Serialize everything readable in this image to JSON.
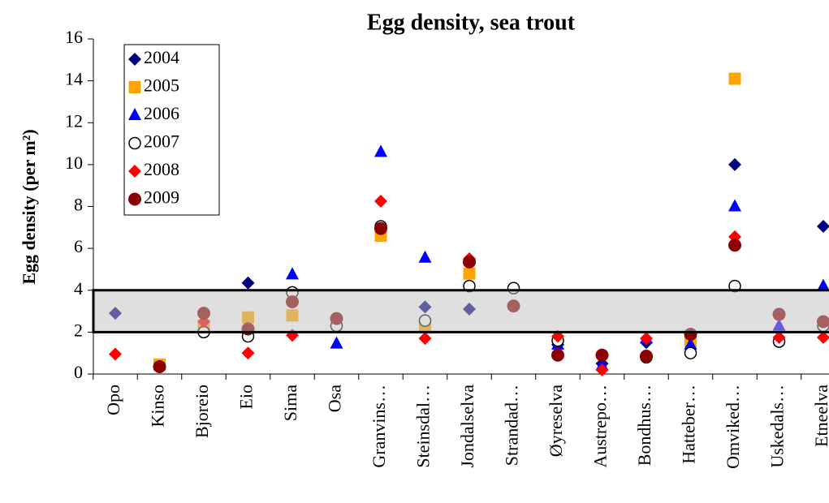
{
  "chart_data": {
    "type": "scatter",
    "title": "Egg density, sea trout",
    "y_label": "Egg density (per m²)",
    "categories": [
      "Opo",
      "Kinso",
      "Bjoreio",
      "Eio",
      "Sima",
      "Osa",
      "Granvins…",
      "Steinsdal…",
      "Jondalselva",
      "Strandad…",
      "Øyreselva",
      "Austrepo…",
      "Bondhus…",
      "Hatteber…",
      "Omviked…",
      "Uskedals…",
      "Etneelva"
    ],
    "series": [
      {
        "name": "2004",
        "color": "#000080",
        "marker": "diamond",
        "values": [
          2.9,
          null,
          null,
          4.35,
          null,
          null,
          7.0,
          3.2,
          3.1,
          null,
          1.4,
          0.5,
          1.5,
          null,
          10.0,
          null,
          7.05
        ]
      },
      {
        "name": "2005",
        "color": "#FFA500",
        "marker": "square",
        "values": [
          null,
          0.45,
          2.3,
          2.7,
          2.8,
          null,
          6.6,
          2.3,
          4.8,
          null,
          null,
          null,
          null,
          1.5,
          14.1,
          null,
          null
        ]
      },
      {
        "name": "2006",
        "color": "#0000FF",
        "marker": "triangle",
        "values": [
          null,
          null,
          null,
          null,
          4.75,
          1.45,
          10.6,
          5.55,
          null,
          null,
          1.4,
          0.4,
          1.7,
          1.4,
          8.0,
          2.3,
          4.2
        ]
      },
      {
        "name": "2007",
        "color": "#000000",
        "marker": "open-circle",
        "values": [
          null,
          null,
          2.0,
          1.8,
          3.9,
          2.3,
          7.05,
          2.55,
          4.2,
          4.1,
          1.6,
          null,
          0.8,
          1.0,
          4.2,
          1.55,
          2.3
        ]
      },
      {
        "name": "2008",
        "color": "#FF0000",
        "marker": "diamond",
        "values": [
          0.95,
          null,
          2.5,
          1.0,
          1.85,
          null,
          8.25,
          1.7,
          5.5,
          null,
          1.8,
          0.2,
          1.7,
          null,
          6.55,
          1.75,
          1.75
        ]
      },
      {
        "name": "2009",
        "color": "#8B0000",
        "marker": "circle",
        "values": [
          null,
          0.35,
          2.9,
          2.15,
          3.45,
          2.65,
          6.95,
          null,
          5.35,
          3.25,
          0.9,
          0.9,
          0.85,
          1.9,
          6.15,
          2.85,
          2.5
        ]
      }
    ],
    "band": [
      2,
      4
    ],
    "ylim": [
      0,
      16
    ],
    "yticks": [
      0,
      2,
      4,
      6,
      8,
      10,
      12,
      14,
      16
    ],
    "legend": "upper left"
  }
}
